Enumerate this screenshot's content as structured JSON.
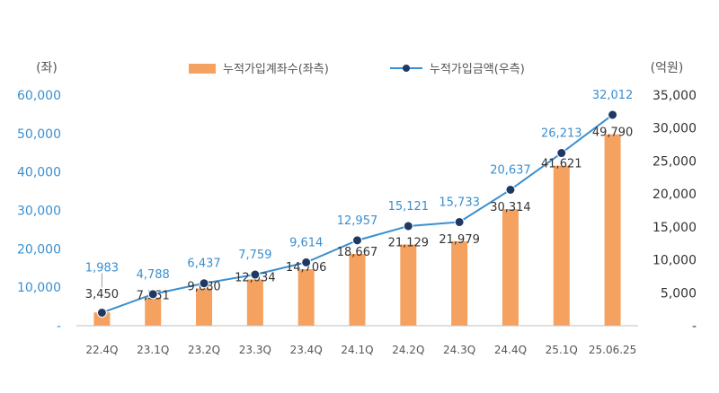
{
  "chart_data": {
    "type": "bar+line",
    "categories": [
      "22.4Q",
      "23.1Q",
      "23.2Q",
      "23.3Q",
      "23.4Q",
      "24.1Q",
      "24.2Q",
      "24.3Q",
      "24.4Q",
      "25.1Q",
      "25.06.25"
    ],
    "series": [
      {
        "name": "누적가입계좌수(좌측)",
        "type": "bar",
        "axis": "left",
        "color": "#F5A15F",
        "values": [
          3450,
          7351,
          9680,
          12034,
          14706,
          18667,
          21129,
          21979,
          30314,
          41621,
          49790
        ],
        "labels": [
          "3,450",
          "7,351",
          "9,680",
          "12,034",
          "14,706",
          "18,667",
          "21,129",
          "21,979",
          "30,314",
          "41,621",
          "49,790"
        ]
      },
      {
        "name": "누적가입금액(우측)",
        "type": "line",
        "axis": "right",
        "color": "#3A8FD0",
        "marker_color": "#1F3864",
        "values": [
          1983,
          4788,
          6437,
          7759,
          9614,
          12957,
          15121,
          15733,
          20637,
          26213,
          32012
        ],
        "labels": [
          "1,983",
          "4,788",
          "6,437",
          "7,759",
          "9,614",
          "12,957",
          "15,121",
          "15,733",
          "20,637",
          "26,213",
          "32,012"
        ]
      }
    ],
    "left_axis": {
      "unit": "(좌)",
      "range": [
        0,
        60000
      ],
      "ticks": [
        0,
        10000,
        20000,
        30000,
        40000,
        50000,
        60000
      ],
      "tick_labels": [
        "-",
        "10,000",
        "20,000",
        "30,000",
        "40,000",
        "50,000",
        "60,000"
      ],
      "color": "#3A8FD0"
    },
    "right_axis": {
      "unit": "(억원)",
      "range": [
        0,
        35000
      ],
      "ticks": [
        0,
        5000,
        10000,
        15000,
        20000,
        25000,
        30000,
        35000
      ],
      "tick_labels": [
        "-",
        "5,000",
        "10,000",
        "15,000",
        "20,000",
        "25,000",
        "30,000",
        "35,000"
      ],
      "color": "#333333"
    },
    "legend_position": "top-center",
    "grid": false
  }
}
